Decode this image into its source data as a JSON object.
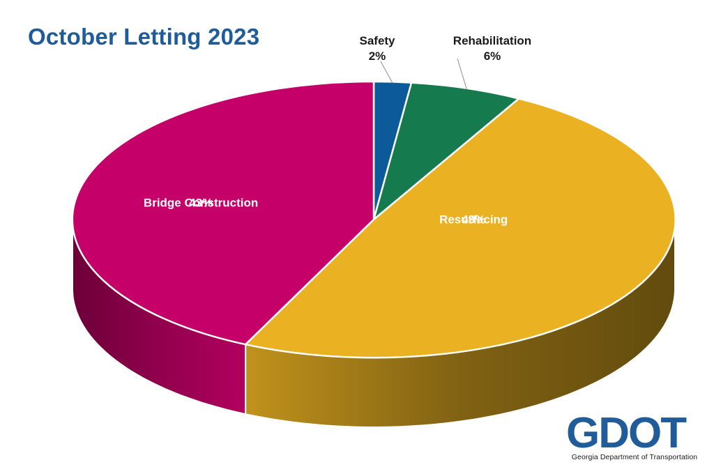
{
  "page": {
    "title": "October Letting 2023"
  },
  "chart_data": {
    "type": "pie",
    "title": "October Letting 2023",
    "slices": [
      {
        "label": "Safety",
        "value": 2,
        "pct_label": "2%",
        "color": "#0d5a9a"
      },
      {
        "label": "Rehabilitation",
        "value": 6,
        "pct_label": "6%",
        "color": "#167a4f"
      },
      {
        "label": "Resurfacing",
        "value": 49,
        "pct_label": "49%",
        "color": "#eab222"
      },
      {
        "label": "Bridge Construction",
        "value": 43,
        "pct_label": "43%",
        "color": "#c50068"
      }
    ],
    "style": "3d",
    "labels_color_inside": "#ffffff",
    "labels_color_outside": "#1a1a1a"
  },
  "logo": {
    "text": "GDOT",
    "subtitle": "Georgia Department of Transportation",
    "color": "#1f5c99",
    "accent": "#167a4f"
  }
}
